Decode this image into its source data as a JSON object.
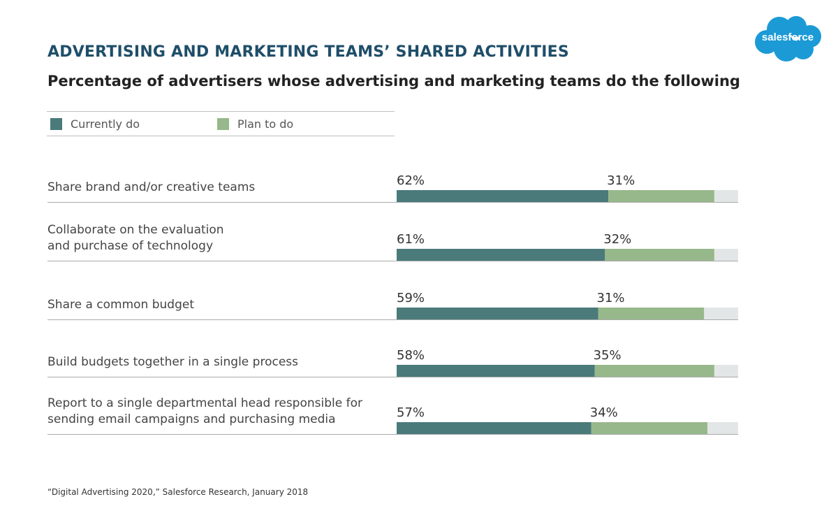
{
  "title": "ADVERTISING AND MARKETING TEAMS’ SHARED ACTIVITIES",
  "subtitle": "Percentage of advertisers whose advertising and marketing teams do the following",
  "logo_text": "salesforce",
  "legend": {
    "current_label": "Currently do",
    "plan_label": "Plan to do"
  },
  "source": "“Digital Advertising 2020,” Salesforce Research, January 2018",
  "colors": {
    "current": "#4a7a7a",
    "plan": "#97b88a",
    "track": "#e3e6e6",
    "title": "#1f4e69",
    "logo": "#1b9ad6"
  },
  "chart_data": {
    "type": "bar",
    "orientation": "horizontal",
    "stacked": true,
    "xlim": [
      0,
      100
    ],
    "categories": [
      [
        "Share brand and/or creative teams"
      ],
      [
        "Collaborate on the evaluation",
        "and purchase of technology"
      ],
      [
        "Share a common budget"
      ],
      [
        "Build budgets together in a single process"
      ],
      [
        "Report to a single departmental head responsible for",
        "sending email campaigns and purchasing media"
      ]
    ],
    "series": [
      {
        "name": "Currently do",
        "values": [
          62,
          61,
          59,
          58,
          57
        ],
        "labels": [
          "62%",
          "61%",
          "59%",
          "58%",
          "57%"
        ]
      },
      {
        "name": "Plan to do",
        "values": [
          31,
          32,
          31,
          35,
          34
        ],
        "labels": [
          "31%",
          "32%",
          "31%",
          "35%",
          "34%"
        ]
      }
    ]
  }
}
